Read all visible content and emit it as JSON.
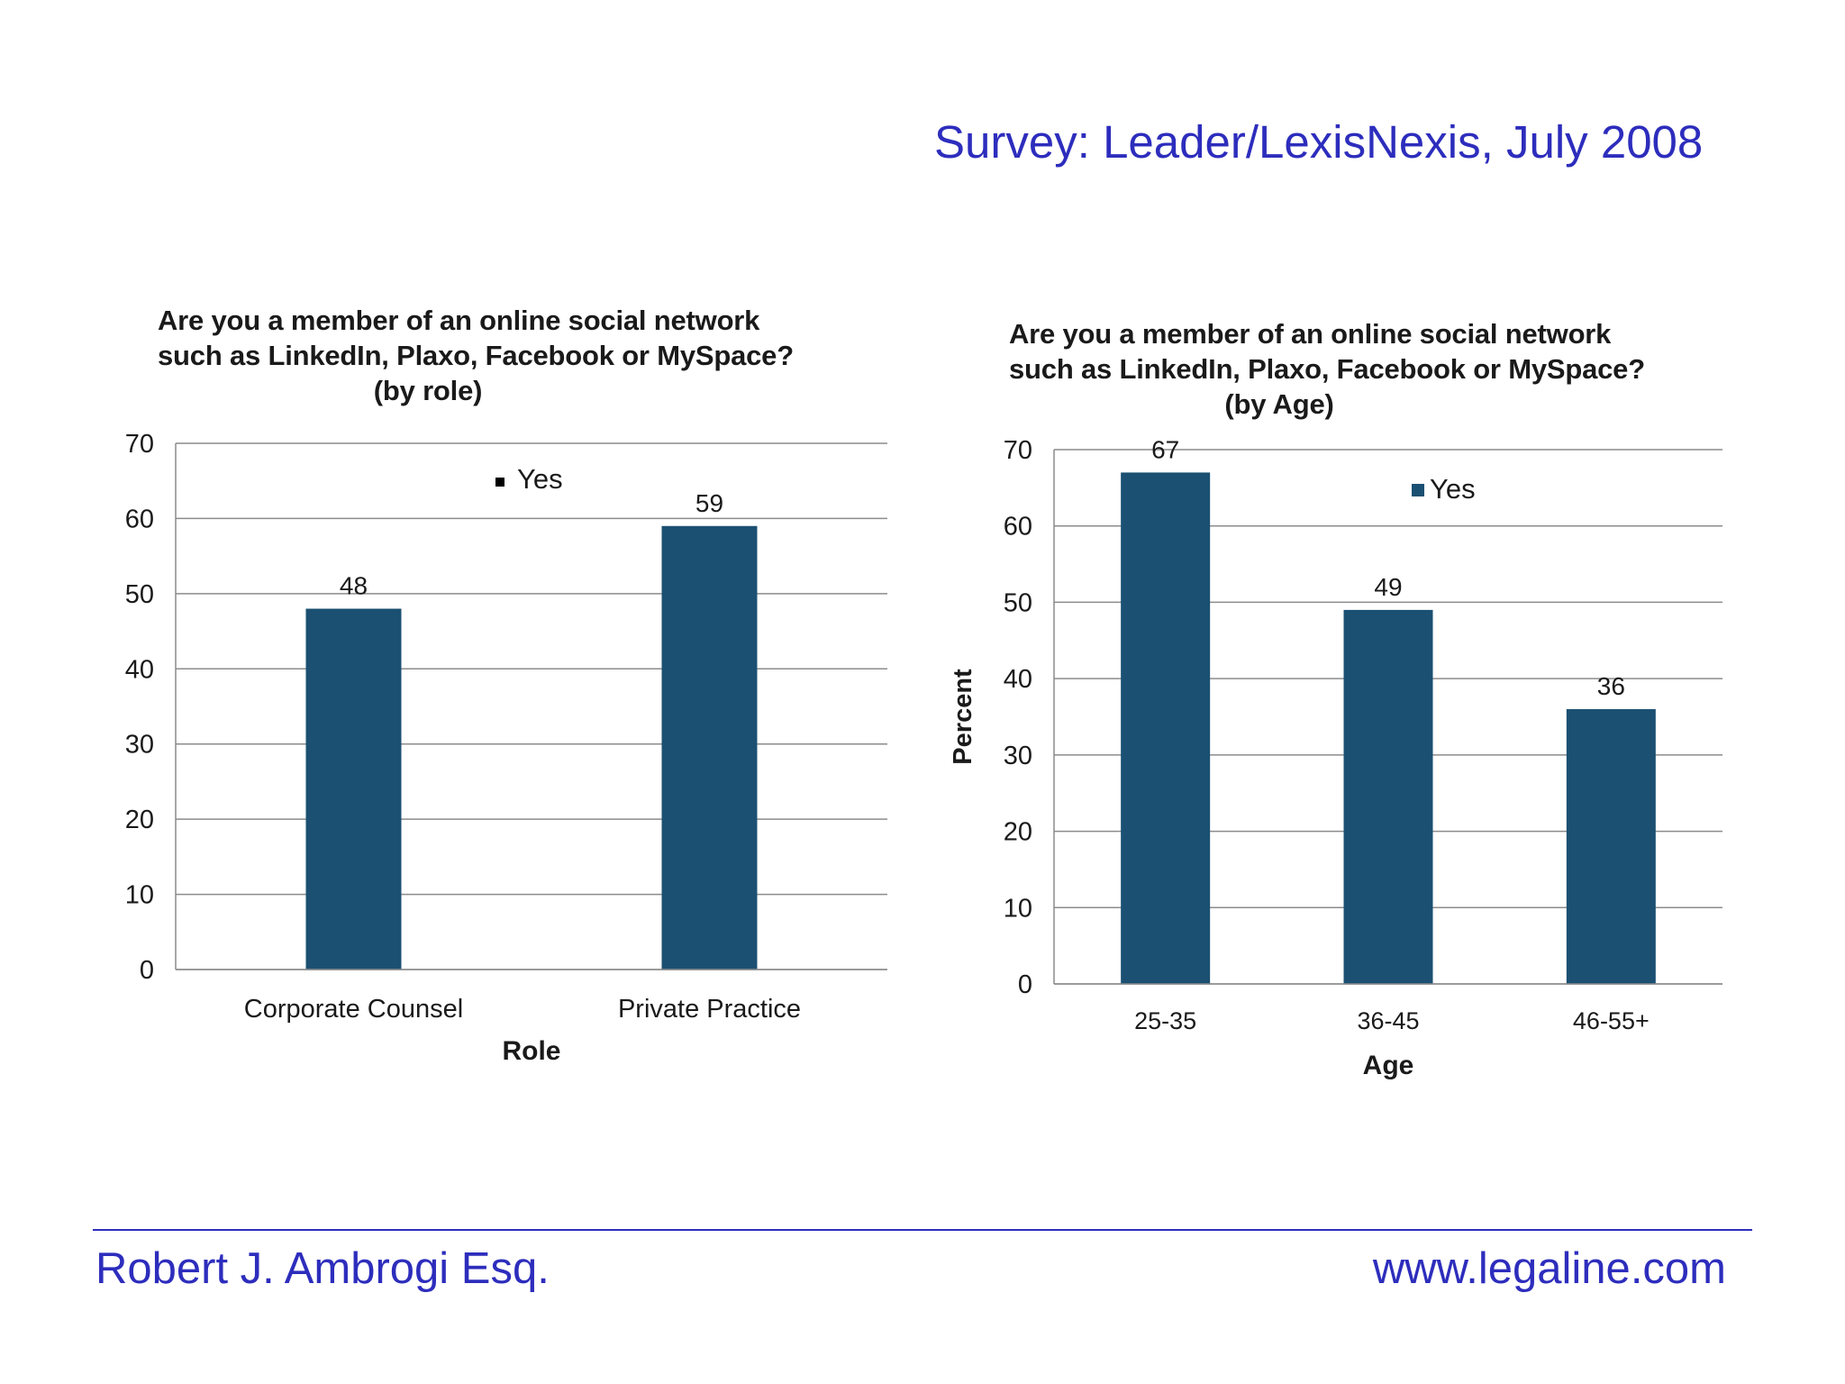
{
  "header": {
    "survey_title": "Survey: Leader/LexisNexis, July 2008"
  },
  "footer": {
    "author": "Robert J. Ambrogi Esq.",
    "website": "www.legaline.com"
  },
  "chart_data": [
    {
      "type": "bar",
      "title_lines": [
        "Are you a member of an online social network",
        "such as LinkedIn, Plaxo, Facebook or MySpace?",
        "(by role)"
      ],
      "categories": [
        "Corporate Counsel",
        "Private Practice"
      ],
      "series": [
        {
          "name": "Yes",
          "values": [
            48,
            59
          ],
          "color": "#1b5072"
        }
      ],
      "xlabel": "Role",
      "ylabel": "",
      "ylim": [
        0,
        70
      ],
      "yticks": [
        "0",
        "10",
        "20",
        "30",
        "40",
        "50",
        "60",
        "70"
      ],
      "grid": true,
      "legend": "top-center"
    },
    {
      "type": "bar",
      "title_lines": [
        "Are you a member of an online social network",
        "such as LinkedIn, Plaxo, Facebook or MySpace?",
        "(by Age)"
      ],
      "categories": [
        "25-35",
        "36-45",
        "46-55+"
      ],
      "series": [
        {
          "name": "Yes",
          "values": [
            67,
            49,
            36
          ],
          "color": "#1b5072"
        }
      ],
      "xlabel": "Age",
      "ylabel": "Percent",
      "ylim": [
        0,
        70
      ],
      "yticks": [
        "0",
        "10",
        "20",
        "30",
        "40",
        "50",
        "60",
        "70"
      ],
      "grid": true,
      "legend": "top-right"
    }
  ]
}
